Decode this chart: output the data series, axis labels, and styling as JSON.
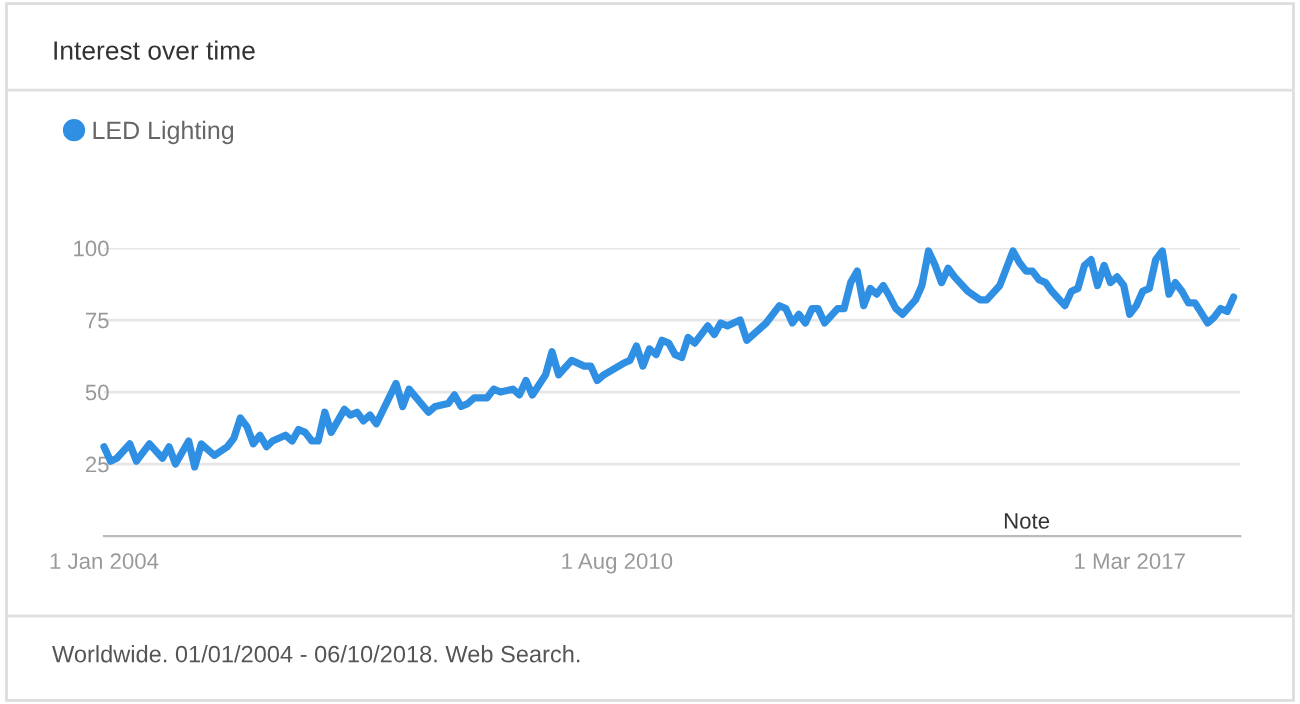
{
  "chart_data": {
    "type": "line",
    "title": "Interest over time",
    "annotations": [
      "Worldwide. 01/01/2004 - 06/10/2018. Web Search.",
      "Note"
    ],
    "x": [
      "2004-01",
      "2004-02",
      "2004-03",
      "2004-05",
      "2004-06",
      "2004-08",
      "2004-10",
      "2004-11",
      "2004-12",
      "2005-02",
      "2005-03",
      "2005-04",
      "2005-06",
      "2005-08",
      "2005-09",
      "2005-10",
      "2005-11",
      "2005-12",
      "2006-01",
      "2006-02",
      "2006-03",
      "2006-05",
      "2006-06",
      "2006-07",
      "2006-08",
      "2006-09",
      "2006-10",
      "2006-11",
      "2006-12",
      "2007-02",
      "2007-03",
      "2007-04",
      "2007-05",
      "2007-06",
      "2007-07",
      "2007-10",
      "2007-11",
      "2007-12",
      "2008-03",
      "2008-04",
      "2008-06",
      "2008-07",
      "2008-08",
      "2008-09",
      "2008-10",
      "2008-12",
      "2009-01",
      "2009-02",
      "2009-04",
      "2009-05",
      "2009-06",
      "2009-07",
      "2009-09",
      "2009-10",
      "2009-11",
      "2010-01",
      "2010-03",
      "2010-04",
      "2010-05",
      "2010-06",
      "2010-09",
      "2010-10",
      "2010-11",
      "2010-12",
      "2011-01",
      "2011-02",
      "2011-03",
      "2011-04",
      "2011-05",
      "2011-06",
      "2011-07",
      "2011-08",
      "2011-10",
      "2011-11",
      "2011-12",
      "2012-01",
      "2012-03",
      "2012-04",
      "2012-06",
      "2012-07",
      "2012-09",
      "2012-10",
      "2012-11",
      "2012-12",
      "2013-01",
      "2013-02",
      "2013-03",
      "2013-04",
      "2013-06",
      "2013-07",
      "2013-08",
      "2013-09",
      "2013-10",
      "2013-11",
      "2013-12",
      "2014-01",
      "2014-02",
      "2014-03",
      "2014-04",
      "2014-06",
      "2014-07",
      "2014-08",
      "2014-09",
      "2014-10",
      "2014-11",
      "2014-12",
      "2015-02",
      "2015-04",
      "2015-05",
      "2015-07",
      "2015-09",
      "2015-10",
      "2015-11",
      "2015-12",
      "2016-01",
      "2016-02",
      "2016-03",
      "2016-05",
      "2016-06",
      "2016-07",
      "2016-08",
      "2016-09",
      "2016-10",
      "2016-11",
      "2016-12",
      "2017-01",
      "2017-02",
      "2017-03",
      "2017-04",
      "2017-05",
      "2017-06",
      "2017-07",
      "2017-08",
      "2017-09",
      "2017-10",
      "2017-11",
      "2017-12",
      "2018-01",
      "2018-03",
      "2018-04",
      "2018-05",
      "2018-06",
      "2018-07"
    ],
    "series": [
      {
        "name": "LED Lighting",
        "color": "#2f8fe3",
        "values": [
          31,
          26,
          27,
          32,
          26,
          32,
          27,
          31,
          25,
          33,
          24,
          32,
          28,
          31,
          34,
          41,
          38,
          32,
          35,
          31,
          33,
          35,
          33,
          37,
          36,
          33,
          33,
          43,
          36,
          44,
          42,
          43,
          40,
          42,
          39,
          53,
          45,
          51,
          43,
          45,
          46,
          49,
          45,
          46,
          48,
          48,
          51,
          50,
          51,
          49,
          54,
          49,
          56,
          64,
          56,
          61,
          59,
          59,
          54,
          56,
          60,
          61,
          66,
          59,
          65,
          63,
          68,
          67,
          63,
          62,
          69,
          67,
          73,
          70,
          74,
          73,
          75,
          68,
          72,
          74,
          80,
          79,
          74,
          77,
          74,
          79,
          79,
          74,
          79,
          79,
          88,
          92,
          80,
          86,
          84,
          87,
          83,
          79,
          77,
          82,
          87,
          99,
          94,
          88,
          93,
          90,
          85,
          82,
          82,
          87,
          99,
          95,
          92,
          92,
          89,
          88,
          85,
          80,
          85,
          86,
          94,
          96,
          87,
          94,
          88,
          90,
          87,
          77,
          80,
          85,
          86,
          96,
          99,
          84,
          88,
          85,
          81,
          81,
          74,
          76,
          79,
          78,
          83
        ]
      }
    ],
    "xlim": [
      "2004-01-01",
      "2018-08-01"
    ],
    "xticks": [
      {
        "value": "2004-01-01",
        "label": "1 Jan 2004"
      },
      {
        "value": "2010-08-01",
        "label": "1 Aug 2010"
      },
      {
        "value": "2017-03-01",
        "label": "1 Mar 2017"
      }
    ],
    "ylim": [
      0,
      100
    ],
    "yticks": [
      25,
      50,
      75,
      100
    ],
    "grid": "y",
    "legend": "top left",
    "marker": "none",
    "line_style": "solid"
  }
}
